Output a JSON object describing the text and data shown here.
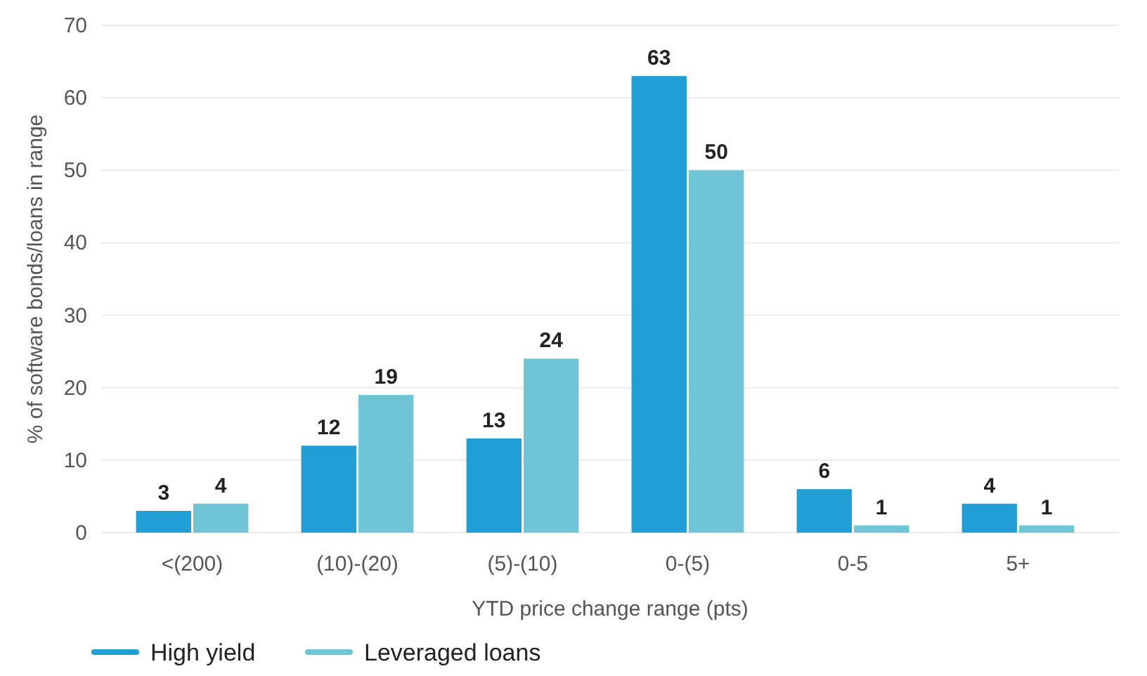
{
  "chart_data": {
    "type": "bar",
    "xlabel": "YTD price change range (pts)",
    "ylabel": "% of software bonds/loans in range",
    "categories": [
      "<(200)",
      "(10)-(20)",
      "(5)-(10)",
      "0-(5)",
      "0-5",
      "5+"
    ],
    "series": [
      {
        "name": "High yield",
        "color": "#219ed6",
        "values": [
          3,
          12,
          13,
          63,
          6,
          4
        ]
      },
      {
        "name": "Leveraged loans",
        "color": "#6fc5d6",
        "values": [
          4,
          19,
          24,
          50,
          1,
          1
        ]
      }
    ],
    "ylim": [
      0,
      70
    ],
    "yticks": [
      0,
      10,
      20,
      30,
      40,
      50,
      60,
      70
    ],
    "grid": "y",
    "legend": "bottom",
    "data_labels": true
  }
}
